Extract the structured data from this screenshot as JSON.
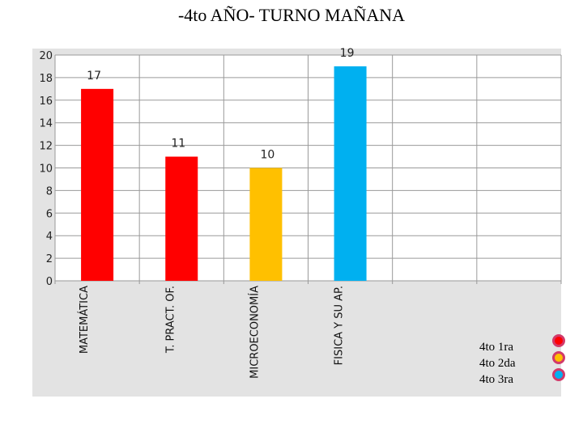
{
  "chart_data": {
    "type": "bar",
    "title": "-4to AÑO- TURNO MAÑANA",
    "categories": [
      "MATEMÁTICA",
      "T. PRACT. OF.",
      "MICROECONOMÍA",
      "FISICA Y SU AP."
    ],
    "bars": [
      {
        "category": "MATEMÁTICA",
        "value": 17,
        "series": "4to 1ra"
      },
      {
        "category": "T. PRACT. OF.",
        "value": 11,
        "series": "4to 1ra"
      },
      {
        "category": "MICROECONOMÍA",
        "value": 10,
        "series": "4to 2da"
      },
      {
        "category": "FISICA Y SU AP.",
        "value": 19,
        "series": "4to 3ra"
      }
    ],
    "series": [
      {
        "name": "4to 1ra",
        "color": "#ff0000"
      },
      {
        "name": "4to 2da",
        "color": "#ffc000"
      },
      {
        "name": "4to 3ra",
        "color": "#00b0f0"
      }
    ],
    "yticks": [
      "0",
      "2",
      "4",
      "6",
      "8",
      "10",
      "12",
      "14",
      "16",
      "18",
      "20"
    ],
    "ylim": [
      0,
      20
    ],
    "grid": true,
    "legend_position": "bottom-right"
  }
}
